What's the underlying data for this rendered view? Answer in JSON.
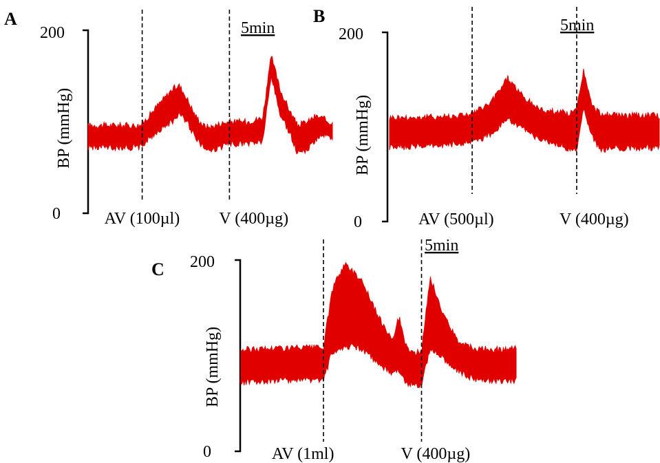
{
  "chart_data": [
    {
      "type": "line",
      "panel": "A",
      "ylabel": "BP (mmHg)",
      "ylim": [
        0,
        200
      ],
      "yticks": [
        "200",
        "0"
      ],
      "scale_bar": "5min",
      "grid": false,
      "color": "#e00000",
      "x_span_min": 14,
      "events": [
        {
          "label": "AV (100µl)",
          "t": 3.1
        },
        {
          "label": "V (400µg)",
          "t": 8.1
        }
      ],
      "series": [
        {
          "t": [
            0,
            3.0,
            3.2,
            4.0,
            4.8,
            5.2,
            5.6,
            6.1,
            6.6,
            7.0,
            7.6,
            8.1,
            8.6,
            9.1,
            10.0,
            10.5,
            11.0,
            11.6,
            12.0,
            12.6,
            13.0,
            13.4,
            13.8,
            14.0
          ],
          "upper": [
            96,
            96,
            100,
            118,
            135,
            140,
            128,
            108,
            96,
            94,
            98,
            100,
            100,
            100,
            104,
            172,
            135,
            110,
            96,
            100,
            106,
            104,
            100,
            98
          ],
          "lower": [
            72,
            72,
            76,
            90,
            100,
            108,
            102,
            85,
            72,
            68,
            72,
            76,
            76,
            76,
            78,
            150,
            108,
            86,
            66,
            70,
            80,
            86,
            82,
            78
          ]
        }
      ]
    },
    {
      "type": "line",
      "panel": "B",
      "ylabel": "BP (mmHg)",
      "ylim": [
        0,
        200
      ],
      "yticks": [
        "200",
        "0"
      ],
      "scale_bar": "5min",
      "grid": false,
      "color": "#e00000",
      "x_span_min": 16,
      "events": [
        {
          "label": "AV (500µl)",
          "t": 4.9
        },
        {
          "label": "V (400µg)",
          "t": 11.1
        }
      ],
      "series": [
        {
          "t": [
            0,
            2.0,
            4.0,
            4.9,
            6.0,
            7.0,
            8.0,
            9.0,
            10.0,
            10.7,
            11.1,
            11.5,
            12.0,
            12.5,
            13.5,
            14.5,
            16.0
          ],
          "upper": [
            110,
            110,
            112,
            114,
            125,
            152,
            130,
            118,
            116,
            114,
            118,
            160,
            122,
            114,
            112,
            112,
            112
          ],
          "lower": [
            78,
            80,
            82,
            84,
            92,
            108,
            96,
            86,
            82,
            76,
            76,
            120,
            90,
            76,
            78,
            78,
            78
          ]
        }
      ]
    },
    {
      "type": "line",
      "panel": "C",
      "ylabel": "BP (mmHg)",
      "ylim": [
        0,
        200
      ],
      "yticks": [
        "200",
        "0"
      ],
      "scale_bar": "5min",
      "grid": false,
      "color": "#e00000",
      "x_span_min": 16,
      "events": [
        {
          "label": "AV (1ml)",
          "t": 4.8
        },
        {
          "label": "V (400µg)",
          "t": 10.5
        }
      ],
      "series": [
        {
          "t": [
            0,
            2.0,
            4.8,
            5.3,
            6.0,
            7.0,
            8.0,
            8.8,
            9.2,
            9.6,
            10.0,
            10.5,
            11.0,
            11.6,
            12.5,
            13.5,
            14.5,
            16.0
          ],
          "upper": [
            106,
            108,
            108,
            168,
            196,
            180,
            140,
            118,
            140,
            110,
            102,
            104,
            182,
            150,
            118,
            108,
            106,
            108
          ],
          "lower": [
            72,
            74,
            74,
            104,
            110,
            108,
            92,
            80,
            86,
            72,
            70,
            70,
            108,
            100,
            86,
            76,
            74,
            74
          ]
        }
      ]
    }
  ]
}
